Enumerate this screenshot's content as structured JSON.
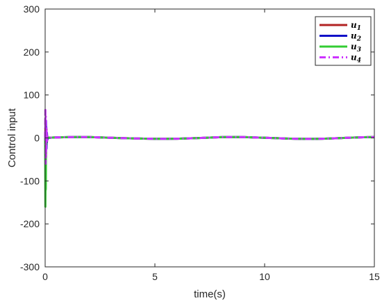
{
  "chart_data": {
    "type": "line",
    "title": "",
    "xlabel": "time(s)",
    "ylabel": "Control input",
    "xlim": [
      0,
      15
    ],
    "ylim": [
      -300,
      300
    ],
    "xticks": [
      0,
      5,
      10,
      15
    ],
    "yticks": [
      -300,
      -200,
      -100,
      0,
      100,
      200,
      300
    ],
    "grid": false,
    "legend_position": "top-right",
    "series": [
      {
        "name": "u",
        "subscript": "1",
        "color": "#b22222",
        "style": "solid",
        "x": [
          0,
          0.02,
          0.04,
          0.06,
          0.08,
          0.1,
          0.15,
          0.2,
          0.3,
          0.5,
          1,
          1.5,
          2,
          2.5,
          3,
          3.5,
          4,
          4.5,
          5,
          5.5,
          6,
          6.5,
          7,
          7.5,
          8,
          8.5,
          9,
          9.5,
          10,
          10.5,
          11,
          11.5,
          12,
          12.5,
          13,
          13.5,
          14,
          14.5,
          15
        ],
        "y": [
          0,
          30,
          -45,
          20,
          -10,
          3,
          1,
          0.5,
          0.8,
          1.2,
          1.8,
          2.2,
          2,
          1.3,
          0.5,
          -0.3,
          -1,
          -1.6,
          -2,
          -2.1,
          -1.8,
          -1.1,
          -0.2,
          0.9,
          1.8,
          2.2,
          2,
          1.3,
          0.4,
          -0.5,
          -1.4,
          -2,
          -2.3,
          -2,
          -1.2,
          -0.2,
          0.8,
          1.6,
          2
        ]
      },
      {
        "name": "u",
        "subscript": "2",
        "color": "#1010c8",
        "style": "solid",
        "x": [
          0,
          0.02,
          0.04,
          0.06,
          0.08,
          0.1,
          0.15,
          0.2,
          0.3,
          0.5,
          1,
          1.5,
          2,
          2.5,
          3,
          3.5,
          4,
          4.5,
          5,
          5.5,
          6,
          6.5,
          7,
          7.5,
          8,
          8.5,
          9,
          9.5,
          10,
          10.5,
          11,
          11.5,
          12,
          12.5,
          13,
          13.5,
          14,
          14.5,
          15
        ],
        "y": [
          0,
          -20,
          40,
          -25,
          12,
          -4,
          1,
          0.5,
          0.8,
          1.2,
          1.8,
          2.2,
          2,
          1.3,
          0.5,
          -0.3,
          -1,
          -1.6,
          -2,
          -2.1,
          -1.8,
          -1.1,
          -0.2,
          0.9,
          1.8,
          2.2,
          2,
          1.3,
          0.4,
          -0.5,
          -1.4,
          -2,
          -2.3,
          -2,
          -1.2,
          -0.2,
          0.8,
          1.6,
          2
        ]
      },
      {
        "name": "u",
        "subscript": "3",
        "color": "#33cc33",
        "style": "solid",
        "x": [
          0,
          0.01,
          0.02,
          0.03,
          0.04,
          0.06,
          0.08,
          0.1,
          0.15,
          0.2,
          0.3,
          0.5,
          1,
          1.5,
          2,
          2.5,
          3,
          3.5,
          4,
          4.5,
          5,
          5.5,
          6,
          6.5,
          7,
          7.5,
          8,
          8.5,
          9,
          9.5,
          10,
          10.5,
          11,
          11.5,
          12,
          12.5,
          13,
          13.5,
          14,
          14.5,
          15
        ],
        "y": [
          0,
          -160,
          -70,
          -120,
          -30,
          15,
          -5,
          2,
          1,
          0.5,
          0.8,
          1.2,
          1.8,
          2.2,
          2,
          1.3,
          0.5,
          -0.3,
          -1,
          -1.6,
          -2,
          -2.1,
          -1.8,
          -1.1,
          -0.2,
          0.9,
          1.8,
          2.2,
          2,
          1.3,
          0.4,
          -0.5,
          -1.4,
          -2,
          -2.3,
          -2,
          -1.2,
          -0.2,
          0.8,
          1.6,
          2
        ]
      },
      {
        "name": "u",
        "subscript": "4",
        "color": "#cc33ff",
        "style": "dashdot",
        "x": [
          0,
          0.01,
          0.02,
          0.03,
          0.04,
          0.06,
          0.08,
          0.1,
          0.15,
          0.2,
          0.3,
          0.5,
          1,
          1.5,
          2,
          2.5,
          3,
          3.5,
          4,
          4.5,
          5,
          5.5,
          6,
          6.5,
          7,
          7.5,
          8,
          8.5,
          9,
          9.5,
          10,
          10.5,
          11,
          11.5,
          12,
          12.5,
          13,
          13.5,
          14,
          14.5,
          15
        ],
        "y": [
          0,
          65,
          -60,
          50,
          -40,
          25,
          -10,
          4,
          1,
          0.5,
          0.8,
          1.2,
          1.8,
          2.2,
          2,
          1.3,
          0.5,
          -0.3,
          -1,
          -1.6,
          -2,
          -2.1,
          -1.8,
          -1.1,
          -0.2,
          0.9,
          1.8,
          2.2,
          2,
          1.3,
          0.4,
          -0.5,
          -1.4,
          -2,
          -2.3,
          -2,
          -1.2,
          -0.2,
          0.8,
          1.6,
          2
        ]
      }
    ]
  }
}
